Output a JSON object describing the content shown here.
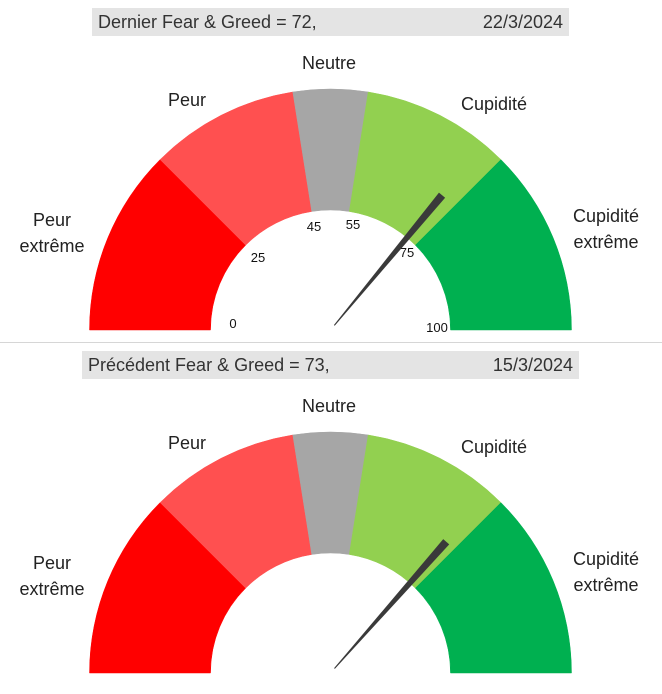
{
  "chart_data": [
    {
      "type": "gauge",
      "title_left": "Dernier Fear & Greed = 72,",
      "title_right": "22/3/2024",
      "value": 72,
      "range": [
        0,
        100
      ],
      "segments": [
        {
          "label": "Peur extrême",
          "label_lines": [
            "Peur",
            "extrême"
          ],
          "from": 0,
          "to": 25,
          "color": "#ff0000"
        },
        {
          "label": "Peur",
          "label_lines": [
            "Peur"
          ],
          "from": 25,
          "to": 45,
          "color": "#ff5050"
        },
        {
          "label": "Neutre",
          "label_lines": [
            "Neutre"
          ],
          "from": 45,
          "to": 55,
          "color": "#a6a6a6"
        },
        {
          "label": "Cupidité",
          "label_lines": [
            "Cupidité"
          ],
          "from": 55,
          "to": 75,
          "color": "#92d050"
        },
        {
          "label": "Cupidité extrême",
          "label_lines": [
            "Cupidité",
            "extrême"
          ],
          "from": 75,
          "to": 100,
          "color": "#00b050"
        }
      ],
      "tick_labels": [
        "0",
        "25",
        "45",
        "55",
        "75",
        "100"
      ],
      "tick_values": [
        0,
        25,
        45,
        55,
        75,
        100
      ],
      "show_ticks": true
    },
    {
      "type": "gauge",
      "title_left": "Précédent Fear & Greed = 73,",
      "title_right": "15/3/2024",
      "value": 73,
      "range": [
        0,
        100
      ],
      "segments": [
        {
          "label": "Peur extrême",
          "label_lines": [
            "Peur",
            "extrême"
          ],
          "from": 0,
          "to": 25,
          "color": "#ff0000"
        },
        {
          "label": "Peur",
          "label_lines": [
            "Peur"
          ],
          "from": 25,
          "to": 45,
          "color": "#ff5050"
        },
        {
          "label": "Neutre",
          "label_lines": [
            "Neutre"
          ],
          "from": 45,
          "to": 55,
          "color": "#a6a6a6"
        },
        {
          "label": "Cupidité",
          "label_lines": [
            "Cupidité"
          ],
          "from": 55,
          "to": 75,
          "color": "#92d050"
        },
        {
          "label": "Cupidité extrême",
          "label_lines": [
            "Cupidité",
            "extrême"
          ],
          "from": 75,
          "to": 100,
          "color": "#00b050"
        }
      ],
      "tick_labels": [],
      "tick_values": [],
      "show_ticks": false
    }
  ],
  "colors": {
    "header_bg": "#e4e4e4",
    "needle": "#3a3a3a",
    "divider": "#d6d6d6"
  }
}
